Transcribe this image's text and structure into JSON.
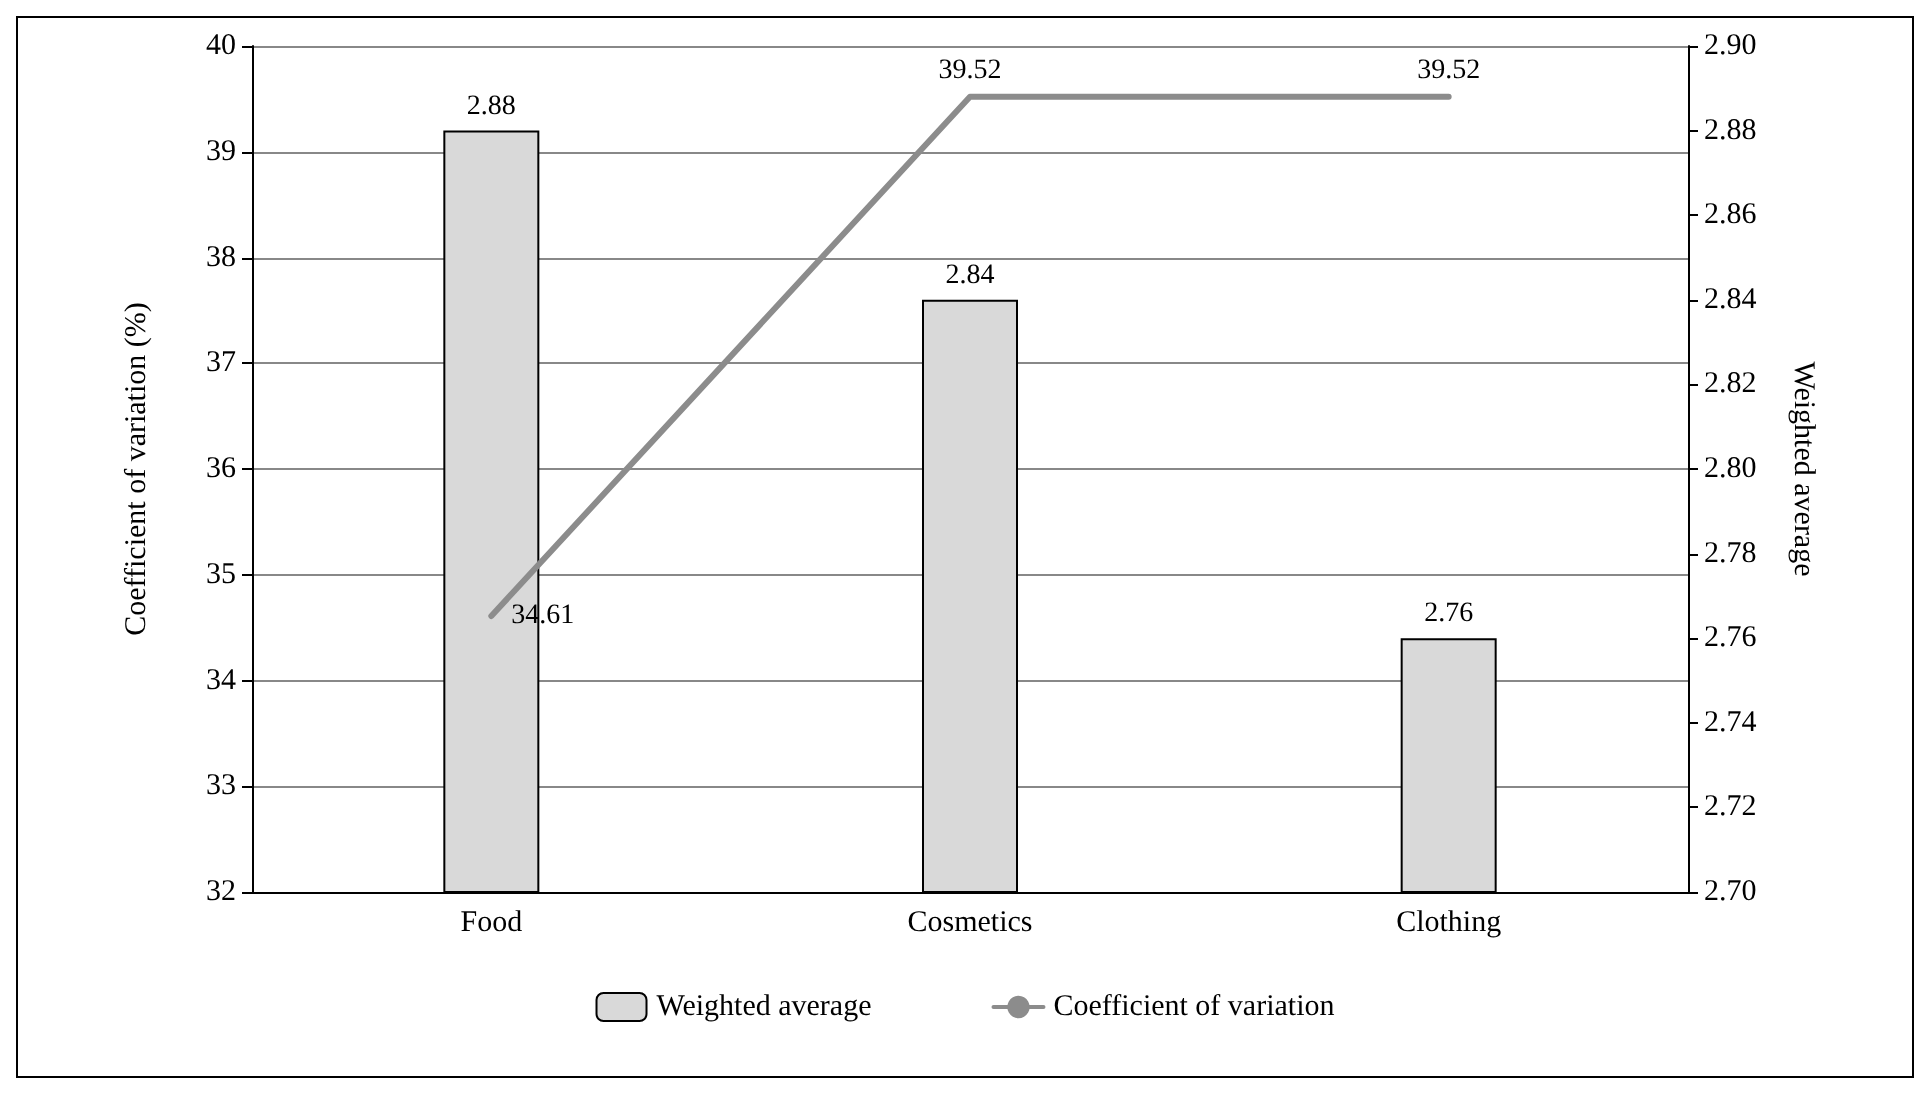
{
  "chart_data": {
    "type": "bar",
    "categories": [
      "Food",
      "Cosmetics",
      "Clothing"
    ],
    "ylabel": "Coefficient of variation (%)",
    "y2label": "Weighted average",
    "series": [
      {
        "name": "Weighted average",
        "axis": "y2",
        "color": "#d9d9d9",
        "values": [
          2.88,
          2.84,
          2.76
        ]
      },
      {
        "name": "Coefficient of variation",
        "type": "line",
        "axis": "y",
        "color": "#8c8c8c",
        "values": [
          34.61,
          39.52,
          39.52
        ]
      }
    ],
    "ylim": [
      32,
      40
    ],
    "yticks": [
      32,
      33,
      34,
      35,
      36,
      37,
      38,
      39,
      40
    ],
    "y2lim": [
      2.7,
      2.9
    ],
    "y2ticks": [
      {
        "value": 2.7,
        "label": "2.70"
      },
      2.72,
      2.74,
      2.76,
      2.78,
      {
        "value": 2.8,
        "label": "2.80"
      },
      2.82,
      2.84,
      2.86,
      2.88,
      {
        "value": 2.9,
        "label": "2.90"
      }
    ],
    "grid": "y",
    "legend": "bottom",
    "data_labels": true,
    "marker": "none",
    "line_style": "solid"
  }
}
